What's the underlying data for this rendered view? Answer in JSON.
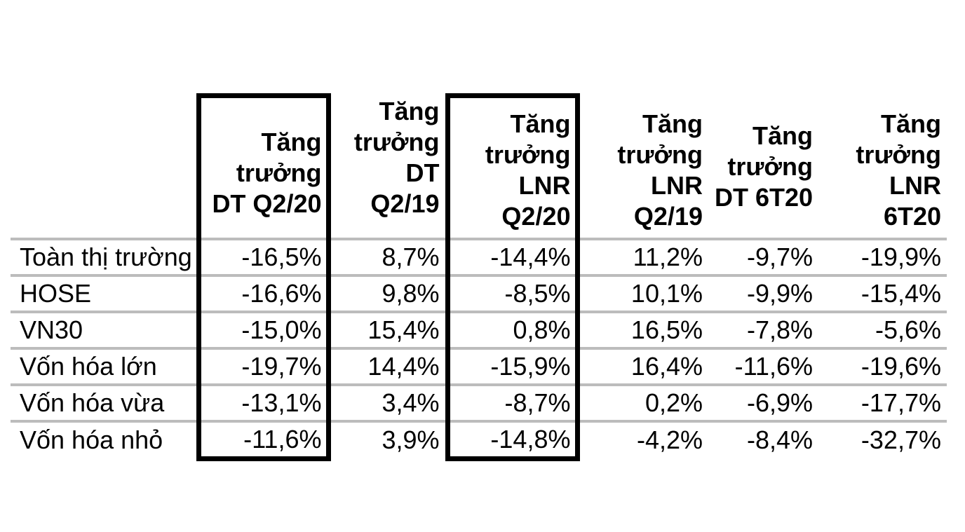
{
  "colors": {
    "background": "#ffffff",
    "text": "#000000",
    "grid_line": "#bcbcbc",
    "highlight_box_border": "#000000"
  },
  "table": {
    "corner_label": "",
    "columns": [
      {
        "label": "Tăng\ntrưởng\nDT Q2/20",
        "boxed": true,
        "lines": 3
      },
      {
        "label": "Tăng\ntrưởng\nDT Q2/19",
        "boxed": false,
        "lines": 3
      },
      {
        "label": "Tăng\ntrưởng\nLNR\nQ2/20",
        "boxed": true,
        "lines": 4
      },
      {
        "label": "Tăng\ntrưởng\nLNR\nQ2/19",
        "boxed": false,
        "lines": 4
      },
      {
        "label": "Tăng\ntrưởng\nDT 6T20",
        "boxed": false,
        "lines": 3
      },
      {
        "label": "Tăng\ntrưởng\nLNR\n6T20",
        "boxed": false,
        "lines": 4
      }
    ],
    "rows": [
      {
        "label": "Toàn thị trường",
        "values": [
          "-16,5%",
          "8,7%",
          "-14,4%",
          "11,2%",
          "-9,7%",
          "-19,9%"
        ]
      },
      {
        "label": "HOSE",
        "values": [
          "-16,6%",
          "9,8%",
          "-8,5%",
          "10,1%",
          "-9,9%",
          "-15,4%"
        ]
      },
      {
        "label": "VN30",
        "values": [
          "-15,0%",
          "15,4%",
          "0,8%",
          "16,5%",
          "-7,8%",
          "-5,6%"
        ]
      },
      {
        "label": "Vốn hóa lớn",
        "values": [
          "-19,7%",
          "14,4%",
          "-15,9%",
          "16,4%",
          "-11,6%",
          "-19,6%"
        ]
      },
      {
        "label": "Vốn hóa vừa",
        "values": [
          "-13,1%",
          "3,4%",
          "-8,7%",
          "0,2%",
          "-6,9%",
          "-17,7%"
        ]
      },
      {
        "label": "Vốn hóa nhỏ",
        "values": [
          "-11,6%",
          "3,9%",
          "-14,8%",
          "-4,2%",
          "-8,4%",
          "-32,7%"
        ]
      }
    ]
  },
  "chart_data": {
    "type": "table",
    "row_header": [
      "Toàn thị trường",
      "HOSE",
      "VN30",
      "Vốn hóa lớn",
      "Vốn hóa vừa",
      "Vốn hóa nhỏ"
    ],
    "columns": [
      "Tăng trưởng DT Q2/20",
      "Tăng trưởng DT Q2/19",
      "Tăng trưởng LNR Q2/20",
      "Tăng trưởng LNR Q2/19",
      "Tăng trưởng DT 6T20",
      "Tăng trưởng LNR 6T20"
    ],
    "values_percent": [
      [
        -16.5,
        8.7,
        -14.4,
        11.2,
        -9.7,
        -19.9
      ],
      [
        -16.6,
        9.8,
        -8.5,
        10.1,
        -9.9,
        -15.4
      ],
      [
        -15.0,
        15.4,
        0.8,
        16.5,
        -7.8,
        -5.6
      ],
      [
        -19.7,
        14.4,
        -15.9,
        16.4,
        -11.6,
        -19.6
      ],
      [
        -13.1,
        3.4,
        -8.7,
        0.2,
        -6.9,
        -17.7
      ],
      [
        -11.6,
        3.9,
        -14.8,
        -4.2,
        -8.4,
        -32.7
      ]
    ],
    "highlighted_columns": [
      "Tăng trưởng DT Q2/20",
      "Tăng trưởng LNR Q2/20"
    ],
    "number_format": "comma-decimal percent",
    "grid": "horizontal-only"
  }
}
